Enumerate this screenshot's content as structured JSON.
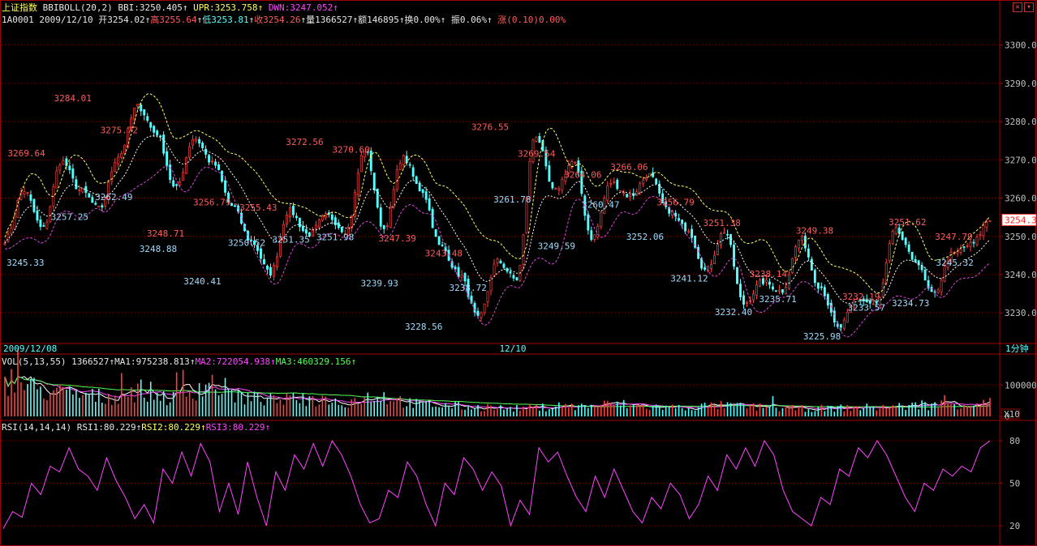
{
  "index_name": "上证指数",
  "boll_header": {
    "study": "BBIBOLL(20,2)",
    "bbi": "BBI:3250.405",
    "upr": "UPR:3253.758",
    "dwn": "DWN:3247.052",
    "arrow": "↑"
  },
  "info_line": {
    "code": "1A0001",
    "date": "2009/12/10",
    "open": "开3254.02",
    "high": "高3255.64",
    "low": "低3253.81",
    "close": "收3254.26",
    "volume": "量1366527",
    "amount": "额146895",
    "turnover": "换0.00%",
    "amplitude": "振0.06%",
    "change": "涨(0.10)0.00%",
    "arrow": "↑"
  },
  "vol_header": {
    "study": "VOL(5,13,55)",
    "vol": "1366527",
    "ma1": "MA1:975238.813",
    "ma2": "MA2:722054.938",
    "ma3": "MA3:460329.156",
    "arrow": "↑"
  },
  "rsi_header": {
    "study": "RSI(14,14,14)",
    "rsi1": "RSI1:80.229",
    "rsi2": "RSI2:80.229",
    "rsi3": "RSI3:80.229",
    "arrow": "↑"
  },
  "time_axis": {
    "start": "2009/12/08",
    "mid": "12/10",
    "period": "1分钟"
  },
  "price_tag": "3254.3",
  "vol_unit": "X10",
  "colors": {
    "up": "#ff4040",
    "down": "#55ffff",
    "bbi": "#ffffff",
    "upr": "#ffff66",
    "dwn": "#dd44dd",
    "grid": "#800000",
    "rsi": "#ff44ff",
    "ma1": "#ffffff",
    "ma2": "#ff44ff",
    "ma3": "#55ff55"
  },
  "chart_data": [
    {
      "type": "candlestick",
      "title": "BBIBOLL(20,2)",
      "ylim": [
        3222,
        3305
      ],
      "yticks": [
        3230.0,
        3240.0,
        3250.0,
        3260.0,
        3270.0,
        3280.0,
        3290.0,
        3300.0
      ],
      "close_path": [
        3249,
        3262,
        3252,
        3269.64,
        3262,
        3257.25,
        3271,
        3284.01,
        3277,
        3262.49,
        3275.72,
        3269,
        3258,
        3248.71,
        3240.41,
        3256.79,
        3250.52,
        3255.43,
        3251.35,
        3272.56,
        3251.98,
        3270.6,
        3262,
        3247.39,
        3239.93,
        3228.56,
        3243.48,
        3238.72,
        3276.55,
        3261.78,
        3269.54,
        3249.59,
        3264.06,
        3260.47,
        3266.06,
        3256.79,
        3252.06,
        3241.12,
        3251.38,
        3232.4,
        3238.14,
        3235.71,
        3249.38,
        3237,
        3225.98,
        3233.57,
        3232.19,
        3251.62,
        3244,
        3234.73,
        3245.32,
        3247.79,
        3254.26
      ],
      "labels_high": [
        {
          "text": "3269.64",
          "value": 3269.64
        },
        {
          "text": "3284.01",
          "value": 3284.01
        },
        {
          "text": "3275.72",
          "value": 3275.72
        },
        {
          "text": "3248.71",
          "value": 3248.71
        },
        {
          "text": "3256.79",
          "value": 3256.79
        },
        {
          "text": "3255.43",
          "value": 3255.43
        },
        {
          "text": "3272.56",
          "value": 3272.56
        },
        {
          "text": "3270.60",
          "value": 3270.6
        },
        {
          "text": "3247.39",
          "value": 3247.39
        },
        {
          "text": "3243.48",
          "value": 3243.48
        },
        {
          "text": "3276.55",
          "value": 3276.55
        },
        {
          "text": "3269.54",
          "value": 3269.54
        },
        {
          "text": "3264.06",
          "value": 3264.06
        },
        {
          "text": "3266.06",
          "value": 3266.06
        },
        {
          "text": "3256.79",
          "value": 3256.79
        },
        {
          "text": "3251.38",
          "value": 3251.38
        },
        {
          "text": "3238.14",
          "value": 3238.14
        },
        {
          "text": "3249.38",
          "value": 3249.38
        },
        {
          "text": "3232.19",
          "value": 3232.19
        },
        {
          "text": "3251.62",
          "value": 3251.62
        },
        {
          "text": "3247.79",
          "value": 3247.79
        }
      ],
      "labels_low": [
        {
          "text": "3245.33",
          "value": 3245.33
        },
        {
          "text": "3257.25",
          "value": 3257.25
        },
        {
          "text": "3262.49",
          "value": 3262.49
        },
        {
          "text": "3248.88",
          "value": 3248.88
        },
        {
          "text": "3240.41",
          "value": 3240.41
        },
        {
          "text": "3250.52",
          "value": 3250.52
        },
        {
          "text": "3251.35",
          "value": 3251.35
        },
        {
          "text": "3251.98",
          "value": 3251.98
        },
        {
          "text": "3239.93",
          "value": 3239.93
        },
        {
          "text": "3228.56",
          "value": 3228.56
        },
        {
          "text": "3238.72",
          "value": 3238.72
        },
        {
          "text": "3261.78",
          "value": 3261.78
        },
        {
          "text": "3249.59",
          "value": 3249.59
        },
        {
          "text": "3260.47",
          "value": 3260.47
        },
        {
          "text": "3252.06",
          "value": 3252.06
        },
        {
          "text": "3241.12",
          "value": 3241.12
        },
        {
          "text": "3232.40",
          "value": 3232.4
        },
        {
          "text": "3235.71",
          "value": 3235.71
        },
        {
          "text": "3225.98",
          "value": 3225.98
        },
        {
          "text": "3233.57",
          "value": 3233.57
        },
        {
          "text": "3234.73",
          "value": 3234.73
        },
        {
          "text": "3245.32",
          "value": 3245.32
        }
      ]
    },
    {
      "type": "bar",
      "title": "VOL(5,13,55)",
      "ylim": [
        0,
        160000
      ],
      "yticks": [
        0,
        100000
      ],
      "levels": [
        120000,
        85000,
        70000,
        60000,
        85000,
        55000,
        110000,
        60000,
        50000,
        55000,
        45000,
        70000,
        40000,
        35000,
        28000,
        25000,
        30000,
        32000,
        40000,
        30000,
        28000,
        35000,
        30000,
        25000,
        25000,
        28000,
        30000,
        35000,
        40000,
        45000
      ]
    },
    {
      "type": "line",
      "title": "RSI(14,14,14)",
      "ylim": [
        8,
        88
      ],
      "yticks": [
        20,
        50,
        80
      ],
      "values": [
        18,
        30,
        26,
        50,
        42,
        62,
        58,
        75,
        60,
        55,
        45,
        68,
        52,
        40,
        25,
        35,
        22,
        60,
        50,
        72,
        55,
        78,
        65,
        30,
        50,
        28,
        65,
        40,
        20,
        58,
        45,
        70,
        60,
        78,
        62,
        80,
        70,
        55,
        35,
        22,
        25,
        45,
        40,
        65,
        55,
        35,
        20,
        50,
        42,
        68,
        60,
        45,
        58,
        48,
        20,
        38,
        28,
        75,
        65,
        72,
        55,
        40,
        30,
        55,
        40,
        60,
        45,
        30,
        22,
        40,
        32,
        50,
        42,
        25,
        35,
        55,
        45,
        70,
        60,
        75,
        62,
        80,
        70,
        45,
        30,
        25,
        20,
        40,
        35,
        60,
        55,
        75,
        68,
        80,
        70,
        55,
        40,
        30,
        50,
        45,
        60,
        55,
        62,
        58,
        75,
        80
      ]
    }
  ]
}
